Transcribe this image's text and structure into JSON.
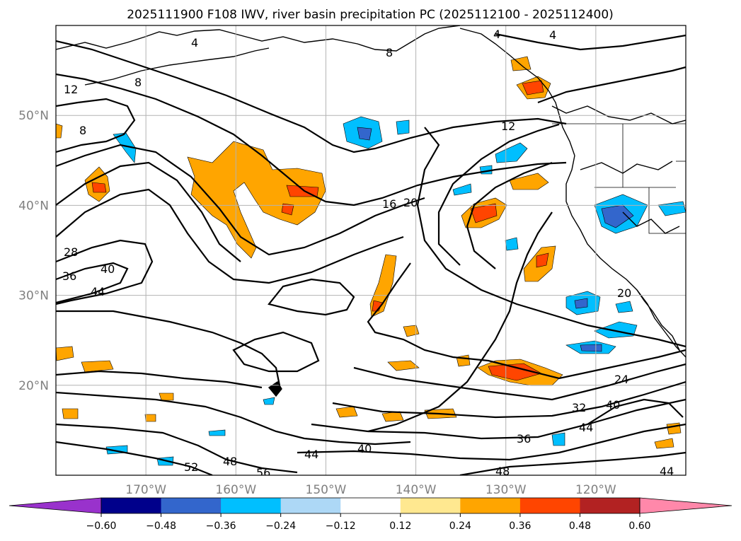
{
  "title": "2025111900 F108 IWV, river basin precipitation PC (2025112100 - 2025112400)",
  "map": {
    "lon_range": [
      -180,
      -110
    ],
    "lat_range": [
      10,
      60
    ],
    "lat_ticks": [
      {
        "value": 50,
        "label": "50°N"
      },
      {
        "value": 40,
        "label": "40°N"
      },
      {
        "value": 30,
        "label": "30°N"
      },
      {
        "value": 20,
        "label": "20°N"
      }
    ],
    "lon_ticks": [
      {
        "value": -170,
        "label": "170°W"
      },
      {
        "value": -160,
        "label": "160°W"
      },
      {
        "value": -150,
        "label": "150°W"
      },
      {
        "value": -140,
        "label": "140°W"
      },
      {
        "value": -130,
        "label": "130°W"
      },
      {
        "value": -120,
        "label": "120°W"
      }
    ],
    "gridlines": true,
    "contour_labels": [
      "4",
      "4",
      "4",
      "8",
      "8",
      "8",
      "12",
      "12",
      "16",
      "20",
      "20",
      "24",
      "28",
      "32",
      "36",
      "36",
      "40",
      "40",
      "40",
      "44",
      "44",
      "44",
      "44",
      "48",
      "48",
      "52",
      "56"
    ],
    "contour_color": "#000000"
  },
  "colorbar": {
    "orientation": "horizontal",
    "extend": "both",
    "colors": [
      "#9932cc",
      "#00008b",
      "#3366cc",
      "#00bfff",
      "#add8f6",
      "#ffffff",
      "#ffe890",
      "#ffa500",
      "#ff4500",
      "#b22222",
      "#ff88aa"
    ],
    "tick_labels": [
      "−0.60",
      "−0.48",
      "−0.36",
      "−0.24",
      "−0.12",
      "0.12",
      "0.24",
      "0.36",
      "0.48",
      "0.60"
    ]
  }
}
